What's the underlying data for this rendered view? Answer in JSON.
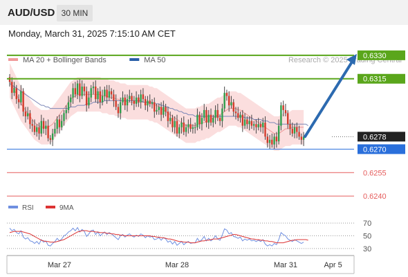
{
  "header": {
    "symbol": "AUD/USD",
    "timeframe": "30 MIN",
    "datetime": "Monday, March 31, 2025 7:15:10 AM CET"
  },
  "colors": {
    "resistance": "#5aa61b",
    "support": "#2a6fdb",
    "target": "#e55c5c",
    "bullish": "#2e9e4b",
    "bearish": "#d23a2a",
    "bollinger": "#fad3d3",
    "ma20": "#ee9a9a",
    "ma50": "#7b86b6",
    "arrow": "#2c6ab0",
    "rsi": "#6f8fe0",
    "rsi_ma": "#dd3333",
    "price_tag": "#222222"
  },
  "legend_main": [
    {
      "label": "MA 20 + Bollinger Bands",
      "color": "#f19a9a"
    },
    {
      "label": "MA 50",
      "color": "#2a5fa8"
    }
  ],
  "watermark": "Research © 2025 Trading Central",
  "legend_rsi": [
    {
      "label": "RSI",
      "color": "#6f8fe0"
    },
    {
      "label": "9MA",
      "color": "#dd3333"
    }
  ],
  "chart_data": {
    "type": "candlestick",
    "ylim": [
      0.6233,
      0.6341
    ],
    "levels": [
      {
        "label": "0.6330",
        "value": 0.633,
        "kind": "resistance"
      },
      {
        "label": "0.6315",
        "value": 0.6315,
        "kind": "resistance"
      },
      {
        "label": "0.6278",
        "value": 0.6278,
        "kind": "current"
      },
      {
        "label": "0.6270",
        "value": 0.627,
        "kind": "support"
      },
      {
        "label": "0.6255",
        "value": 0.6255,
        "kind": "target"
      },
      {
        "label": "0.6240",
        "value": 0.624,
        "kind": "target"
      }
    ],
    "x_ticks": [
      "Mar 27",
      "Mar 28",
      "Mar 31",
      "Apr 5"
    ],
    "x_tick_index": [
      22,
      74,
      122,
      143
    ],
    "close": [
      0.6313,
      0.6306,
      0.6309,
      0.6302,
      0.63,
      0.6307,
      0.6294,
      0.6291,
      0.6293,
      0.6286,
      0.6285,
      0.6281,
      0.6284,
      0.628,
      0.6288,
      0.6283,
      0.6285,
      0.6277,
      0.6276,
      0.628,
      0.6283,
      0.6289,
      0.6284,
      0.6288,
      0.6293,
      0.6295,
      0.63,
      0.6303,
      0.6309,
      0.6305,
      0.6312,
      0.6304,
      0.631,
      0.6307,
      0.6298,
      0.6303,
      0.6309,
      0.631,
      0.6302,
      0.6307,
      0.63,
      0.6304,
      0.6308,
      0.6303,
      0.6307,
      0.6305,
      0.6301,
      0.6297,
      0.6293,
      0.63,
      0.6303,
      0.6298,
      0.6302,
      0.6304,
      0.6301,
      0.6299,
      0.6303,
      0.63,
      0.6305,
      0.6302,
      0.6298,
      0.6301,
      0.6299,
      0.63,
      0.6294,
      0.6295,
      0.6297,
      0.6292,
      0.6297,
      0.6294,
      0.6288,
      0.629,
      0.6284,
      0.6288,
      0.628,
      0.6284,
      0.6287,
      0.6281,
      0.6284,
      0.6286,
      0.6283,
      0.6284,
      0.6284,
      0.6292,
      0.6286,
      0.629,
      0.6295,
      0.6287,
      0.6292,
      0.6287,
      0.629,
      0.6295,
      0.629,
      0.6288,
      0.6296,
      0.6306,
      0.6304,
      0.6298,
      0.63,
      0.6294,
      0.6293,
      0.629,
      0.6292,
      0.6285,
      0.6289,
      0.6286,
      0.6288,
      0.6285,
      0.6286,
      0.6284,
      0.6286,
      0.6284,
      0.6287,
      0.6278,
      0.6274,
      0.6276,
      0.6273,
      0.6278,
      0.6275,
      0.6285,
      0.6298,
      0.6295,
      0.6293,
      0.6286,
      0.6283,
      0.628,
      0.6284,
      0.6281,
      0.6278,
      0.6276,
      0.6278
    ],
    "ma20": [
      0.6314,
      0.6311,
      0.6308,
      0.6305,
      0.6302,
      0.6299,
      0.6297,
      0.6295,
      0.6293,
      0.6291,
      0.6289,
      0.6287,
      0.6286,
      0.6285,
      0.6284,
      0.6284,
      0.6284,
      0.6284,
      0.6285,
      0.6286,
      0.6288,
      0.629,
      0.6292,
      0.6294,
      0.6296,
      0.6298,
      0.63,
      0.6302,
      0.6303,
      0.6304,
      0.6305,
      0.6305,
      0.6305,
      0.6305,
      0.6305,
      0.6305,
      0.6305,
      0.6305,
      0.6305,
      0.6305,
      0.6305,
      0.6304,
      0.6304,
      0.6304,
      0.6303,
      0.6303,
      0.6303,
      0.6302,
      0.6302,
      0.6301,
      0.6301,
      0.6301,
      0.63,
      0.63,
      0.63,
      0.63,
      0.63,
      0.63,
      0.63,
      0.63,
      0.63,
      0.63,
      0.6299,
      0.6299,
      0.6298,
      0.6298,
      0.6297,
      0.6296,
      0.6295,
      0.6294,
      0.6293,
      0.6292,
      0.6291,
      0.629,
      0.6289,
      0.6288,
      0.6287,
      0.6286,
      0.6285,
      0.6285,
      0.6285,
      0.6285,
      0.6285,
      0.6286,
      0.6286,
      0.6287,
      0.6287,
      0.6288,
      0.6288,
      0.6289,
      0.629,
      0.6291,
      0.6292,
      0.6292,
      0.6293,
      0.6294,
      0.6295,
      0.6296,
      0.6296,
      0.6296,
      0.6296,
      0.6295,
      0.6295,
      0.6294,
      0.6293,
      0.6292,
      0.6291,
      0.629,
      0.6289,
      0.6288,
      0.6287,
      0.6286,
      0.6285,
      0.6284,
      0.6283,
      0.6282,
      0.6281,
      0.628,
      0.628,
      0.628,
      0.6281,
      0.6282,
      0.6283,
      0.6283,
      0.6283,
      0.6284,
      0.6284,
      0.6284,
      0.6284,
      0.6284,
      0.6284
    ],
    "ma50": [
      0.6312,
      0.6311,
      0.631,
      0.6309,
      0.6308,
      0.6307,
      0.6306,
      0.6305,
      0.6304,
      0.6303,
      0.6302,
      0.6301,
      0.63,
      0.6299,
      0.6298,
      0.6298,
      0.6297,
      0.6297,
      0.6296,
      0.6296,
      0.6296,
      0.6296,
      0.6296,
      0.6296,
      0.6296,
      0.6296,
      0.6296,
      0.6297,
      0.6297,
      0.6297,
      0.6298,
      0.6298,
      0.6298,
      0.6298,
      0.6299,
      0.6299,
      0.6299,
      0.63,
      0.63,
      0.63,
      0.63,
      0.63,
      0.6301,
      0.6301,
      0.6301,
      0.6301,
      0.6301,
      0.6301,
      0.6301,
      0.6301,
      0.6301,
      0.6301,
      0.6301,
      0.6301,
      0.6301,
      0.6301,
      0.6301,
      0.6301,
      0.6301,
      0.63,
      0.63,
      0.63,
      0.63,
      0.63,
      0.6299,
      0.6299,
      0.6299,
      0.6298,
      0.6298,
      0.6297,
      0.6297,
      0.6296,
      0.6296,
      0.6295,
      0.6295,
      0.6294,
      0.6294,
      0.6293,
      0.6293,
      0.6292,
      0.6292,
      0.6292,
      0.6291,
      0.6291,
      0.6291,
      0.6291,
      0.6291,
      0.6291,
      0.6291,
      0.6291,
      0.6291,
      0.6291,
      0.6291,
      0.6291,
      0.6291,
      0.6291,
      0.6291,
      0.6291,
      0.6291,
      0.6291,
      0.6291,
      0.6291,
      0.6291,
      0.6291,
      0.629,
      0.629,
      0.629,
      0.629,
      0.6289,
      0.6289,
      0.6289,
      0.6289,
      0.6288,
      0.6288,
      0.6288,
      0.6287,
      0.6287,
      0.6287,
      0.6286,
      0.6286,
      0.6286,
      0.6286,
      0.6286,
      0.6286,
      0.6286,
      0.6286,
      0.6286,
      0.6286,
      0.6286,
      0.6286,
      0.6286,
      0.6286,
      0.6285
    ],
    "bb_width": 0.0011,
    "forecast_target": 0.633,
    "rsi": {
      "ylim": [
        20,
        80
      ],
      "levels": [
        70,
        50,
        30
      ],
      "level_labels": [
        "70",
        "50",
        "30"
      ],
      "values": [
        62,
        58,
        60,
        55,
        53,
        58,
        48,
        45,
        47,
        42,
        41,
        38,
        41,
        37,
        44,
        40,
        42,
        35,
        34,
        38,
        41,
        46,
        42,
        45,
        50,
        52,
        56,
        58,
        62,
        58,
        63,
        56,
        60,
        57,
        49,
        53,
        58,
        59,
        52,
        56,
        50,
        53,
        56,
        52,
        55,
        53,
        50,
        47,
        44,
        50,
        52,
        48,
        51,
        53,
        50,
        48,
        51,
        49,
        53,
        51,
        47,
        50,
        48,
        49,
        44,
        45,
        47,
        43,
        47,
        45,
        40,
        42,
        37,
        41,
        35,
        38,
        41,
        36,
        39,
        41,
        38,
        39,
        39,
        46,
        41,
        44,
        49,
        42,
        46,
        42,
        45,
        50,
        45,
        43,
        51,
        61,
        59,
        53,
        55,
        49,
        48,
        46,
        48,
        42,
        45,
        43,
        45,
        42,
        43,
        41,
        43,
        41,
        44,
        37,
        34,
        36,
        34,
        38,
        36,
        44,
        55,
        52,
        50,
        45,
        43,
        41,
        44,
        42,
        40,
        38,
        40
      ],
      "ma_values": [
        55,
        56,
        57,
        57,
        57,
        57,
        56,
        55,
        54,
        53,
        51,
        49,
        47,
        45,
        43,
        42,
        41,
        41,
        40,
        40,
        40,
        41,
        42,
        43,
        44,
        46,
        48,
        50,
        52,
        54,
        56,
        57,
        58,
        58,
        58,
        57,
        57,
        57,
        56,
        56,
        55,
        55,
        55,
        54,
        54,
        53,
        53,
        52,
        52,
        51,
        51,
        50,
        50,
        50,
        50,
        50,
        50,
        50,
        50,
        50,
        50,
        50,
        50,
        49,
        49,
        48,
        48,
        47,
        47,
        46,
        45,
        45,
        44,
        43,
        42,
        41,
        41,
        40,
        40,
        40,
        39,
        39,
        39,
        40,
        41,
        42,
        42,
        43,
        43,
        44,
        45,
        45,
        45,
        46,
        47,
        48,
        49,
        50,
        51,
        52,
        52,
        51,
        50,
        49,
        48,
        47,
        46,
        45,
        45,
        44,
        44,
        43,
        43,
        42,
        42,
        41,
        41,
        40,
        39,
        39,
        39,
        39,
        40,
        41,
        42,
        43,
        43,
        44,
        44,
        44,
        44,
        44,
        43
      ]
    }
  }
}
